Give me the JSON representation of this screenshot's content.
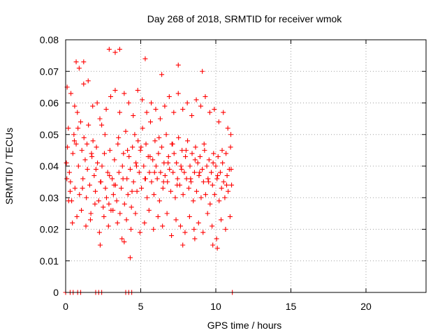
{
  "chart_data": {
    "type": "scatter",
    "title": "Day 268 of 2018, SRMTID for receiver wmok",
    "xlabel": "GPS time / hours",
    "ylabel": "SRMTID / TECUs",
    "xlim": [
      0,
      24
    ],
    "ylim": [
      0,
      0.08
    ],
    "xticks": [
      0,
      5,
      10,
      15,
      20
    ],
    "xtick_labels": [
      "0",
      "5",
      "10",
      "15",
      "20"
    ],
    "yticks": [
      0,
      0.01,
      0.02,
      0.03,
      0.04,
      0.05,
      0.06,
      0.07,
      0.08
    ],
    "ytick_labels": [
      "0",
      "0.01",
      "0.02",
      "0.03",
      "0.04",
      "0.05",
      "0.06",
      "0.07",
      "0.08"
    ],
    "grid": true,
    "marker": "plus",
    "color": "#ff0000",
    "series": [
      {
        "x": [
          0.05,
          0.12,
          0.18,
          0.25,
          0.32,
          0.4,
          0.48,
          0.55,
          0.62,
          0.7,
          0.78,
          0.85,
          0.92,
          1.0,
          1.08,
          1.15,
          1.22,
          1.3,
          1.38,
          1.45,
          1.52,
          1.6,
          1.68,
          1.75,
          1.82,
          1.9,
          1.98,
          2.05,
          2.12,
          2.2,
          2.28,
          2.35,
          2.42,
          2.5,
          2.58,
          2.65,
          2.72,
          2.8,
          2.88,
          2.95,
          3.02,
          3.1,
          3.18,
          3.25,
          3.32,
          3.4,
          3.48,
          3.55,
          3.62,
          3.7,
          3.78,
          3.85,
          3.92,
          4.0,
          4.08,
          4.15,
          4.22,
          4.3,
          4.38,
          4.45,
          4.52,
          4.6,
          4.68,
          4.75,
          4.82,
          4.9,
          4.98,
          5.05,
          5.12,
          5.2,
          5.28,
          5.35,
          5.42,
          5.5,
          5.58,
          5.65,
          5.72,
          5.8,
          5.88,
          5.95,
          6.02,
          6.1,
          6.18,
          6.25,
          6.32,
          6.4,
          6.48,
          6.55,
          6.62,
          6.7,
          6.78,
          6.85,
          6.92,
          7.0,
          7.08,
          7.15,
          7.22,
          7.3,
          7.38,
          7.45,
          7.52,
          7.6,
          7.68,
          7.75,
          7.82,
          7.9,
          7.98,
          8.05,
          8.12,
          8.2,
          8.28,
          8.35,
          8.42,
          8.5,
          8.58,
          8.65,
          8.72,
          8.8,
          8.88,
          8.95,
          9.02,
          9.1,
          9.18,
          9.25,
          9.32,
          9.4,
          9.48,
          9.55,
          9.62,
          9.7,
          9.78,
          9.85,
          9.92,
          10.0,
          10.08,
          10.15,
          10.22,
          10.3,
          10.38,
          10.45,
          10.52,
          10.6,
          10.68,
          10.75,
          10.82,
          10.9,
          10.98,
          11.05,
          0.1,
          0.35,
          0.6,
          0.9,
          1.2,
          1.5,
          1.8,
          2.1,
          2.4,
          2.7,
          3.0,
          3.3,
          3.6,
          3.9,
          4.2,
          4.5,
          4.8,
          5.1,
          5.4,
          5.7,
          6.0,
          6.3,
          6.6,
          6.9,
          7.2,
          7.5,
          7.8,
          8.1,
          8.4,
          8.7,
          9.0,
          9.3,
          9.6,
          9.9,
          10.2,
          10.5,
          10.8,
          11.0,
          0.2,
          0.45,
          0.75,
          1.05,
          1.35,
          1.65,
          1.95,
          2.25,
          2.55,
          2.85,
          3.15,
          3.45,
          3.75,
          4.05,
          4.35,
          4.65,
          4.95,
          5.25,
          5.55,
          5.85,
          6.15,
          6.45,
          6.75,
          7.05,
          7.35,
          7.65,
          7.95,
          8.25,
          8.55,
          8.85,
          9.15,
          9.45,
          9.75,
          10.05,
          10.35,
          10.65,
          10.95,
          0.08,
          0.3,
          0.58,
          0.82,
          1.12,
          1.42,
          1.72,
          2.02,
          2.32,
          2.62,
          2.92,
          3.22,
          3.52,
          3.82,
          4.12,
          4.42,
          4.72,
          5.02,
          5.32,
          5.62,
          5.92,
          6.22,
          6.52,
          6.82,
          7.12,
          7.42,
          7.72,
          8.02,
          8.32,
          8.62,
          8.92,
          9.22,
          9.52,
          9.82,
          10.12,
          10.42,
          10.72,
          11.02,
          2.9,
          3.3,
          3.6,
          0.7,
          1.2,
          7.5,
          9.1,
          5.3,
          6.4,
          3.9,
          2.3,
          4.3,
          9.8,
          10.1,
          7.8,
          8.6,
          0.0,
          0.3,
          0.5,
          0.8,
          1.0,
          2.0,
          2.2,
          2.4,
          4.0,
          4.2,
          4.4,
          11.1
        ],
        "y": [
          0.041,
          0.046,
          0.052,
          0.038,
          0.035,
          0.029,
          0.044,
          0.05,
          0.033,
          0.047,
          0.057,
          0.04,
          0.031,
          0.054,
          0.045,
          0.036,
          0.049,
          0.042,
          0.03,
          0.039,
          0.053,
          0.034,
          0.025,
          0.043,
          0.048,
          0.037,
          0.032,
          0.046,
          0.041,
          0.029,
          0.055,
          0.035,
          0.04,
          0.027,
          0.044,
          0.033,
          0.03,
          0.038,
          0.028,
          0.045,
          0.026,
          0.036,
          0.031,
          0.042,
          0.034,
          0.029,
          0.047,
          0.038,
          0.025,
          0.033,
          0.04,
          0.044,
          0.028,
          0.051,
          0.036,
          0.031,
          0.043,
          0.039,
          0.027,
          0.046,
          0.035,
          0.05,
          0.041,
          0.032,
          0.048,
          0.038,
          0.045,
          0.033,
          0.052,
          0.04,
          0.036,
          0.047,
          0.03,
          0.043,
          0.038,
          0.054,
          0.035,
          0.042,
          0.031,
          0.048,
          0.04,
          0.036,
          0.044,
          0.029,
          0.038,
          0.046,
          0.033,
          0.041,
          0.037,
          0.05,
          0.035,
          0.043,
          0.039,
          0.032,
          0.047,
          0.038,
          0.044,
          0.03,
          0.041,
          0.036,
          0.049,
          0.034,
          0.04,
          0.045,
          0.031,
          0.038,
          0.043,
          0.036,
          0.048,
          0.033,
          0.04,
          0.035,
          0.044,
          0.029,
          0.038,
          0.046,
          0.032,
          0.041,
          0.037,
          0.043,
          0.03,
          0.039,
          0.035,
          0.045,
          0.031,
          0.04,
          0.036,
          0.042,
          0.028,
          0.038,
          0.034,
          0.044,
          0.031,
          0.04,
          0.036,
          0.043,
          0.029,
          0.038,
          0.033,
          0.041,
          0.035,
          0.03,
          0.044,
          0.037,
          0.032,
          0.039,
          0.046,
          0.034,
          0.065,
          0.063,
          0.059,
          0.071,
          0.066,
          0.067,
          0.059,
          0.06,
          0.053,
          0.058,
          0.062,
          0.064,
          0.057,
          0.063,
          0.06,
          0.056,
          0.064,
          0.061,
          0.057,
          0.06,
          0.058,
          0.055,
          0.059,
          0.062,
          0.057,
          0.063,
          0.058,
          0.06,
          0.056,
          0.061,
          0.059,
          0.062,
          0.057,
          0.058,
          0.054,
          0.057,
          0.052,
          0.05,
          0.029,
          0.022,
          0.024,
          0.026,
          0.021,
          0.023,
          0.028,
          0.019,
          0.024,
          0.021,
          0.026,
          0.022,
          0.017,
          0.023,
          0.02,
          0.025,
          0.019,
          0.022,
          0.026,
          0.02,
          0.024,
          0.021,
          0.025,
          0.018,
          0.023,
          0.021,
          0.019,
          0.024,
          0.02,
          0.022,
          0.019,
          0.025,
          0.021,
          0.017,
          0.023,
          0.02,
          0.024,
          0.036,
          0.032,
          0.048,
          0.052,
          0.033,
          0.047,
          0.044,
          0.039,
          0.035,
          0.05,
          0.037,
          0.034,
          0.049,
          0.036,
          0.045,
          0.032,
          0.04,
          0.046,
          0.036,
          0.043,
          0.038,
          0.049,
          0.035,
          0.041,
          0.047,
          0.034,
          0.039,
          0.045,
          0.036,
          0.042,
          0.038,
          0.047,
          0.035,
          0.041,
          0.037,
          0.045,
          0.034,
          0.039,
          0.077,
          0.076,
          0.077,
          0.073,
          0.073,
          0.072,
          0.07,
          0.074,
          0.069,
          0.016,
          0.015,
          0.011,
          0.015,
          0.014,
          0.015,
          0.017,
          0.0,
          0.0,
          0.0,
          0.0,
          0.0,
          0.0,
          0.0,
          0.0,
          0.0,
          0.0,
          0.0,
          0.0
        ]
      }
    ]
  }
}
